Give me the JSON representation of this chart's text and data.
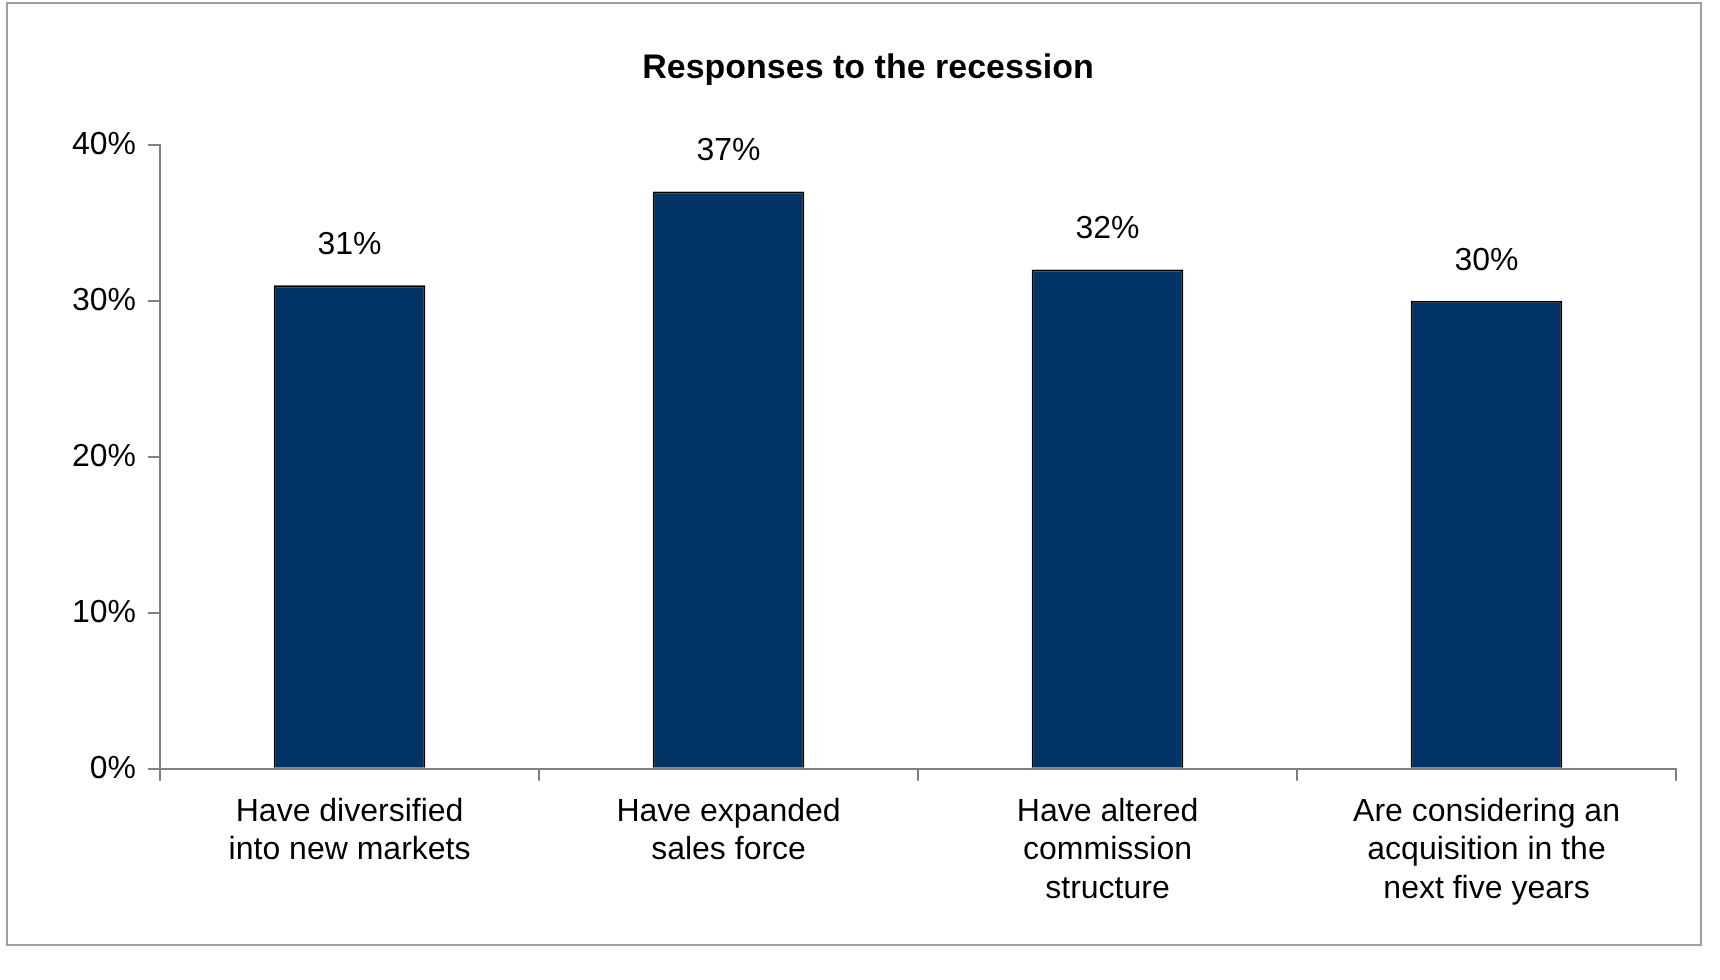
{
  "chart_data": {
    "type": "bar",
    "title": "Responses to the recession",
    "categories": [
      "Have diversified into new markets",
      "Have expanded sales force",
      "Have altered commission structure",
      "Are considering an acquisition in the next five years"
    ],
    "values": [
      31,
      37,
      32,
      30
    ],
    "color": "#003366",
    "value_labels": [
      "31%",
      "37%",
      "32%",
      "30%"
    ],
    "ylim": [
      0,
      40
    ],
    "yticks": [
      {
        "value": 0,
        "label": "0%"
      },
      {
        "value": 10,
        "label": "10%"
      },
      {
        "value": 20,
        "label": "20%"
      },
      {
        "value": 30,
        "label": "30%"
      },
      {
        "value": 40,
        "label": "40%"
      }
    ],
    "grid": false,
    "legend": false
  }
}
